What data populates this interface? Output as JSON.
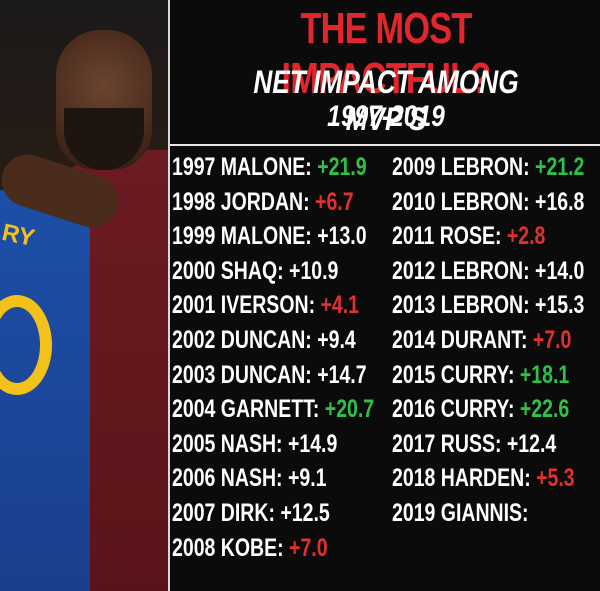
{
  "header": {
    "title": "THE MOST IMPACTFUL?",
    "subtitle_line1": "NET IMPACT AMONG MVP'S",
    "subtitle_line2": "1997-2019"
  },
  "photo": {
    "jersey_text": "RY"
  },
  "left_column": [
    {
      "label": "1997 MALONE:",
      "value": "+21.9",
      "tone": "pos"
    },
    {
      "label": "1998 JORDAN:",
      "value": "+6.7",
      "tone": "neg"
    },
    {
      "label": "1999 MALONE:",
      "value": "+13.0",
      "tone": "neutral"
    },
    {
      "label": "2000 SHAQ:",
      "value": "+10.9",
      "tone": "neutral"
    },
    {
      "label": "2001 IVERSON:",
      "value": "+4.1",
      "tone": "neg"
    },
    {
      "label": "2002 DUNCAN:",
      "value": "+9.4",
      "tone": "neutral"
    },
    {
      "label": "2003 DUNCAN:",
      "value": "+14.7",
      "tone": "neutral"
    },
    {
      "label": "2004 GARNETT:",
      "value": "+20.7",
      "tone": "pos"
    },
    {
      "label": "2005 NASH:",
      "value": "+14.9",
      "tone": "neutral"
    },
    {
      "label": "2006 NASH:",
      "value": "+9.1",
      "tone": "neutral"
    },
    {
      "label": "2007 DIRK:",
      "value": "+12.5",
      "tone": "neutral"
    },
    {
      "label": "2008 KOBE:",
      "value": "+7.0",
      "tone": "neg"
    }
  ],
  "right_column": [
    {
      "label": "2009 LEBRON:",
      "value": "+21.2",
      "tone": "pos"
    },
    {
      "label": "2010 LEBRON:",
      "value": "+16.8",
      "tone": "neutral"
    },
    {
      "label": "2011 ROSE:",
      "value": "+2.8",
      "tone": "neg"
    },
    {
      "label": "2012 LEBRON:",
      "value": "+14.0",
      "tone": "neutral"
    },
    {
      "label": "2013 LEBRON:",
      "value": "+15.3",
      "tone": "neutral"
    },
    {
      "label": "2014 DURANT:",
      "value": "+7.0",
      "tone": "neg"
    },
    {
      "label": "2015 CURRY:",
      "value": "+18.1",
      "tone": "pos"
    },
    {
      "label": "2016 CURRY:",
      "value": "+22.6",
      "tone": "pos"
    },
    {
      "label": "2017 RUSS:",
      "value": "+12.4",
      "tone": "neutral"
    },
    {
      "label": "2018 HARDEN:",
      "value": "+5.3",
      "tone": "neg"
    },
    {
      "label": "2019 GIANNIS:",
      "value": "",
      "tone": "neutral"
    }
  ],
  "colors": {
    "title": "#e3262b",
    "positive": "#2fc24a",
    "negative": "#e23030",
    "text": "#ffffff",
    "background": "#0b0b0c"
  }
}
